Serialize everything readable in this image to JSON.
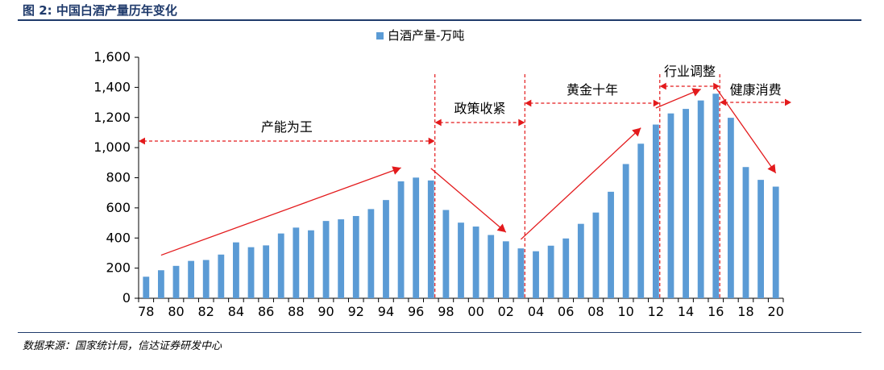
{
  "figure": {
    "title": "图 2:  中国白酒产量历年变化",
    "source": "数据来源：国家统计局，信达证券研发中心"
  },
  "colors": {
    "bar": "#5b9bd5",
    "annotation": "#e31a1c",
    "rule": "#1f3a6b"
  },
  "chart_data": {
    "type": "bar",
    "legend": {
      "position": "top-center"
    },
    "categories": [
      "78",
      "79",
      "80",
      "81",
      "82",
      "83",
      "84",
      "85",
      "86",
      "87",
      "88",
      "89",
      "90",
      "91",
      "92",
      "93",
      "94",
      "95",
      "96",
      "97",
      "98",
      "99",
      "00",
      "01",
      "02",
      "03",
      "04",
      "05",
      "06",
      "07",
      "08",
      "09",
      "10",
      "11",
      "12",
      "13",
      "14",
      "15",
      "16",
      "17",
      "18",
      "19",
      "20"
    ],
    "x_tick_labels": [
      "78",
      "80",
      "82",
      "84",
      "86",
      "88",
      "90",
      "92",
      "94",
      "96",
      "98",
      "00",
      "02",
      "04",
      "06",
      "08",
      "10",
      "12",
      "14",
      "16",
      "18",
      "20"
    ],
    "series": [
      {
        "name": "白酒产量-万吨",
        "values": [
          143,
          186,
          215,
          248,
          254,
          290,
          371,
          339,
          351,
          430,
          469,
          451,
          513,
          524,
          546,
          592,
          652,
          776,
          801,
          782,
          586,
          502,
          476,
          420,
          378,
          331,
          312,
          349,
          397,
          494,
          569,
          707,
          891,
          1026,
          1153,
          1227,
          1257,
          1313,
          1358,
          1198,
          871,
          786,
          741
        ]
      }
    ],
    "ylim": [
      0,
      1600
    ],
    "yticks": [
      "0",
      "200",
      "400",
      "600",
      "800",
      "1,000",
      "1,200",
      "1,400",
      "1,600"
    ],
    "grid": false,
    "annotations": {
      "phases": [
        {
          "label": "产能为王",
          "from": "78",
          "to": "97"
        },
        {
          "label": "政策收紧",
          "from": "97",
          "to": "03"
        },
        {
          "label": "黄金十年",
          "from": "03",
          "to": "12"
        },
        {
          "label": "行业调整",
          "from": "12",
          "to": "16"
        },
        {
          "label": "健康消费",
          "from": "16",
          "to": "20"
        }
      ],
      "dividers": [
        "97",
        "03",
        "12",
        "16"
      ]
    }
  }
}
